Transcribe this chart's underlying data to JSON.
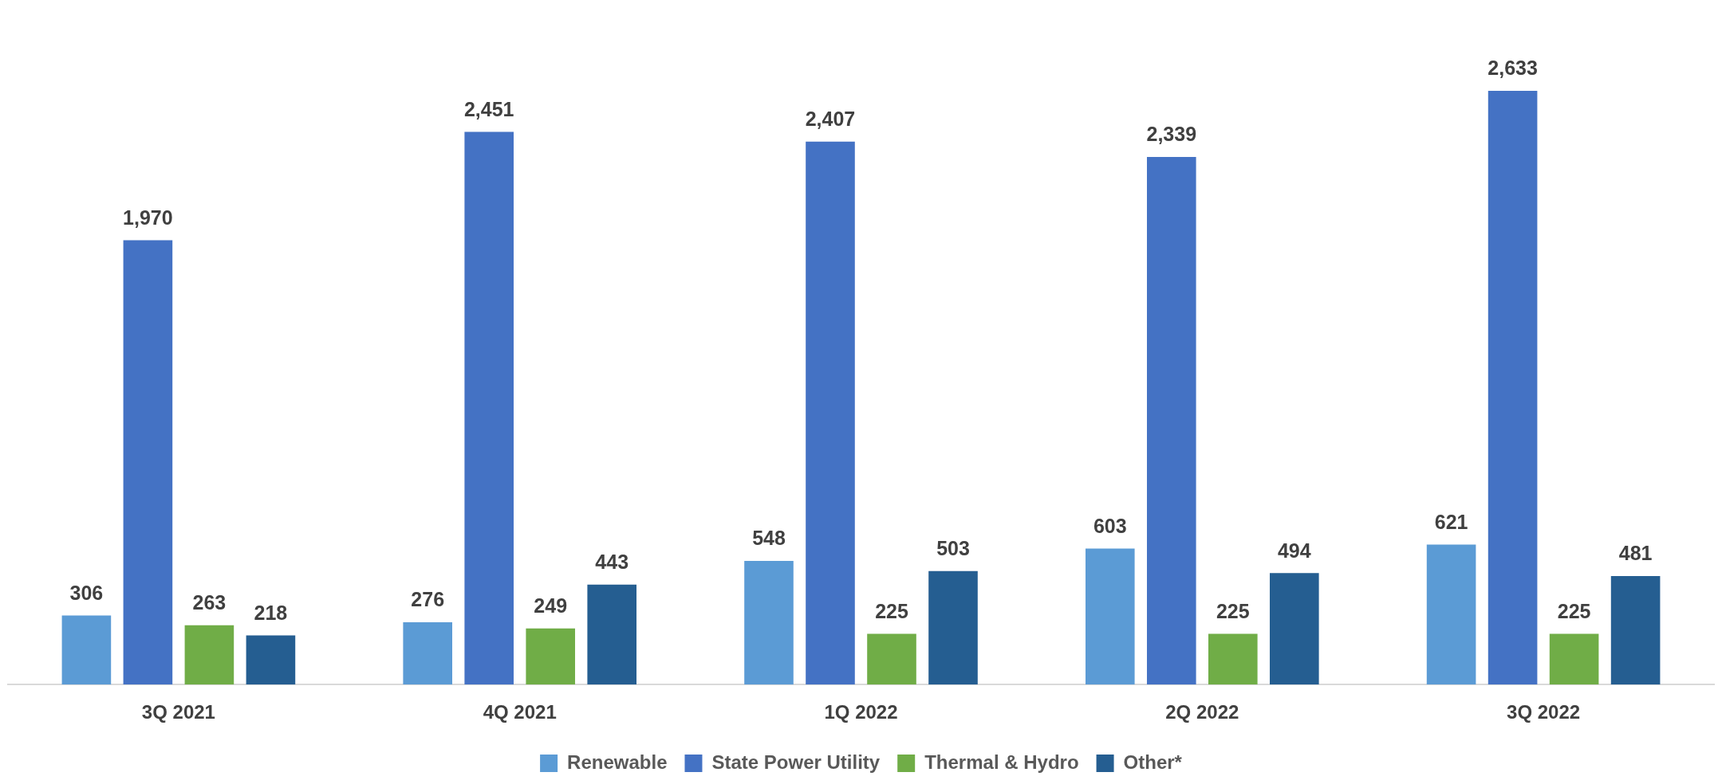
{
  "chart_data": {
    "type": "bar",
    "categories": [
      "3Q 2021",
      "4Q 2021",
      "1Q 2022",
      "2Q 2022",
      "3Q 2022"
    ],
    "series": [
      {
        "name": "Renewable",
        "color": "#5b9bd5",
        "values": [
          306,
          276,
          548,
          603,
          621
        ],
        "value_labels": [
          "306",
          "276",
          "548",
          "603",
          "621"
        ]
      },
      {
        "name": "State Power Utility",
        "color": "#4472c4",
        "values": [
          1970,
          2451,
          2407,
          2339,
          2633
        ],
        "value_labels": [
          "1,970",
          "2,451",
          "2,407",
          "2,339",
          "2,633"
        ]
      },
      {
        "name": "Thermal & Hydro",
        "color": "#70ad47",
        "values": [
          263,
          249,
          225,
          225,
          225
        ],
        "value_labels": [
          "263",
          "249",
          "225",
          "225",
          "225"
        ]
      },
      {
        "name": "Other*",
        "color": "#255e91",
        "values": [
          218,
          443,
          503,
          494,
          481
        ],
        "value_labels": [
          "218",
          "443",
          "503",
          "494",
          "481"
        ]
      }
    ],
    "legend": "bottom",
    "tick_labels": "x"
  }
}
